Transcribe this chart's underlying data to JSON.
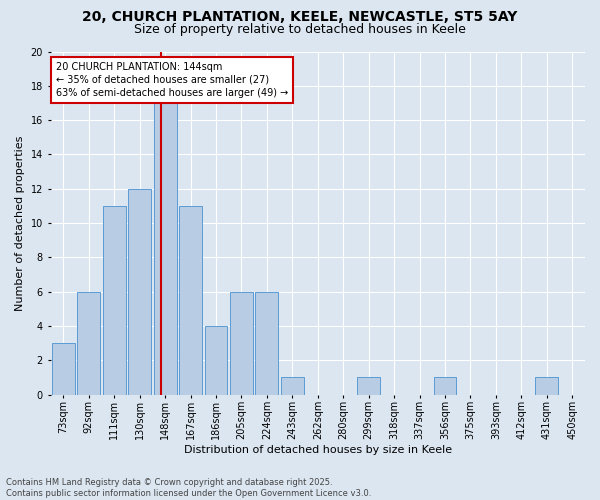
{
  "title1": "20, CHURCH PLANTATION, KEELE, NEWCASTLE, ST5 5AY",
  "title2": "Size of property relative to detached houses in Keele",
  "xlabel": "Distribution of detached houses by size in Keele",
  "ylabel": "Number of detached properties",
  "categories": [
    "73sqm",
    "92sqm",
    "111sqm",
    "130sqm",
    "148sqm",
    "167sqm",
    "186sqm",
    "205sqm",
    "224sqm",
    "243sqm",
    "262sqm",
    "280sqm",
    "299sqm",
    "318sqm",
    "337sqm",
    "356sqm",
    "375sqm",
    "393sqm",
    "412sqm",
    "431sqm",
    "450sqm"
  ],
  "values": [
    3,
    6,
    11,
    12,
    17,
    11,
    4,
    6,
    6,
    1,
    0,
    0,
    1,
    0,
    0,
    1,
    0,
    0,
    0,
    1,
    0
  ],
  "bar_color": "#b8cce4",
  "bar_edge_color": "#5b9bd5",
  "vline_index": 4,
  "vline_color": "#cc0000",
  "annotation_line1": "20 CHURCH PLANTATION: 144sqm",
  "annotation_line2": "← 35% of detached houses are smaller (27)",
  "annotation_line3": "63% of semi-detached houses are larger (49) →",
  "annotation_box_color": "#ffffff",
  "annotation_box_edge_color": "#cc0000",
  "ylim": [
    0,
    20
  ],
  "yticks": [
    0,
    2,
    4,
    6,
    8,
    10,
    12,
    14,
    16,
    18,
    20
  ],
  "footer": "Contains HM Land Registry data © Crown copyright and database right 2025.\nContains public sector information licensed under the Open Government Licence v3.0.",
  "background_color": "#dce6f1",
  "plot_bg_color": "#dce6f1",
  "grid_color": "#ffffff",
  "title_fontsize": 10,
  "subtitle_fontsize": 9,
  "tick_fontsize": 7,
  "ylabel_fontsize": 8,
  "xlabel_fontsize": 8,
  "annotation_fontsize": 7,
  "footer_fontsize": 6
}
